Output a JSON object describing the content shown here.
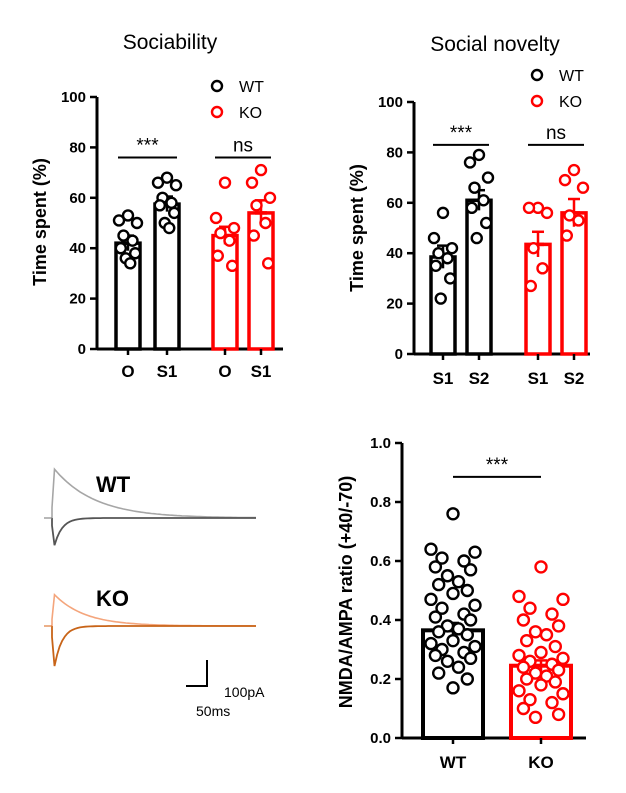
{
  "chart_data": [
    {
      "id": "sociability",
      "type": "bar",
      "title": "Sociability",
      "ylabel": "Time spent (%)",
      "ylim": [
        0,
        100
      ],
      "yticks": [
        0,
        20,
        40,
        60,
        80,
        100
      ],
      "legend": [
        {
          "name": "WT",
          "color": "#000000"
        },
        {
          "name": "KO",
          "color": "#ff0000"
        }
      ],
      "legend_position": "top-right",
      "bars": [
        {
          "label": "O",
          "group": "WT",
          "mean": 42,
          "sem": 3,
          "color": "#000000",
          "points": [
            53,
            51,
            50,
            45,
            43,
            40,
            38,
            36,
            34
          ]
        },
        {
          "label": "S1",
          "group": "WT",
          "mean": 57.5,
          "sem": 3,
          "color": "#000000",
          "points": [
            68,
            66,
            65,
            60,
            58,
            57,
            54,
            50,
            48
          ]
        },
        {
          "label": "O",
          "group": "KO",
          "mean": 45,
          "sem": 3.5,
          "color": "#ff0000",
          "points": [
            66,
            52,
            48,
            46,
            43,
            37,
            33
          ]
        },
        {
          "label": "S1",
          "group": "KO",
          "mean": 54,
          "sem": 5,
          "color": "#ff0000",
          "points": [
            71,
            66,
            60,
            57,
            50,
            45,
            34
          ]
        }
      ],
      "significance": [
        {
          "text": "***",
          "between": [
            0,
            1
          ],
          "y": 76
        },
        {
          "text": "ns",
          "between": [
            2,
            3
          ],
          "y": 76
        }
      ]
    },
    {
      "id": "social-novelty",
      "type": "bar",
      "title": "Social novelty",
      "ylabel": "Time spent (%)",
      "ylim": [
        0,
        100
      ],
      "yticks": [
        0,
        20,
        40,
        60,
        80,
        100
      ],
      "legend": [
        {
          "name": "WT",
          "color": "#000000"
        },
        {
          "name": "KO",
          "color": "#ff0000"
        }
      ],
      "legend_position": "top-right",
      "bars": [
        {
          "label": "S1",
          "group": "WT",
          "mean": 38.5,
          "sem": 4.5,
          "color": "#000000",
          "points": [
            56,
            46,
            42,
            40,
            38,
            35,
            30,
            22
          ]
        },
        {
          "label": "S2",
          "group": "WT",
          "mean": 61,
          "sem": 4,
          "color": "#000000",
          "points": [
            79,
            76,
            70,
            66,
            61,
            58,
            52,
            46
          ]
        },
        {
          "label": "S1",
          "group": "KO",
          "mean": 43.5,
          "sem": 5,
          "color": "#ff0000",
          "points": [
            58,
            58,
            56,
            42,
            34,
            27
          ]
        },
        {
          "label": "S2",
          "group": "KO",
          "mean": 56,
          "sem": 5.5,
          "color": "#ff0000",
          "points": [
            73,
            69,
            66,
            55,
            53,
            47
          ]
        }
      ],
      "significance": [
        {
          "text": "***",
          "between": [
            0,
            1
          ],
          "y": 83
        },
        {
          "text": "ns",
          "between": [
            2,
            3
          ],
          "y": 83
        }
      ]
    },
    {
      "id": "nmda-ampa",
      "type": "bar",
      "title": "",
      "ylabel": "NMDA/AMPA ratio (+40/-70)",
      "ylim": [
        0,
        1.0
      ],
      "yticks": [
        "0.0",
        "0.2",
        "0.4",
        "0.6",
        "0.8",
        "1.0"
      ],
      "bars": [
        {
          "label": "WT",
          "mean": 0.365,
          "sem": 0.025,
          "color": "#000000",
          "points": [
            0.76,
            0.64,
            0.63,
            0.61,
            0.6,
            0.58,
            0.57,
            0.55,
            0.53,
            0.52,
            0.5,
            0.49,
            0.47,
            0.45,
            0.44,
            0.42,
            0.41,
            0.4,
            0.38,
            0.37,
            0.36,
            0.35,
            0.33,
            0.32,
            0.31,
            0.3,
            0.29,
            0.28,
            0.27,
            0.26,
            0.24,
            0.22,
            0.2,
            0.17
          ]
        },
        {
          "label": "KO",
          "mean": 0.245,
          "sem": 0.018,
          "color": "#ff0000",
          "points": [
            0.58,
            0.48,
            0.47,
            0.44,
            0.42,
            0.4,
            0.38,
            0.36,
            0.35,
            0.33,
            0.31,
            0.29,
            0.28,
            0.27,
            0.26,
            0.25,
            0.24,
            0.23,
            0.22,
            0.21,
            0.2,
            0.19,
            0.18,
            0.16,
            0.15,
            0.13,
            0.12,
            0.1,
            0.08,
            0.07
          ]
        }
      ],
      "significance": [
        {
          "text": "***",
          "between": [
            0,
            1
          ],
          "y": 0.885
        }
      ]
    }
  ],
  "traces": {
    "wt_label": "WT",
    "ko_label": "KO",
    "wt_color_plus40": "#a6a6a6",
    "wt_color_minus70": "#555555",
    "ko_color_plus40": "#f4a57c",
    "ko_color_minus70": "#c86418",
    "scale_current": "100pA",
    "scale_time": "50ms"
  }
}
